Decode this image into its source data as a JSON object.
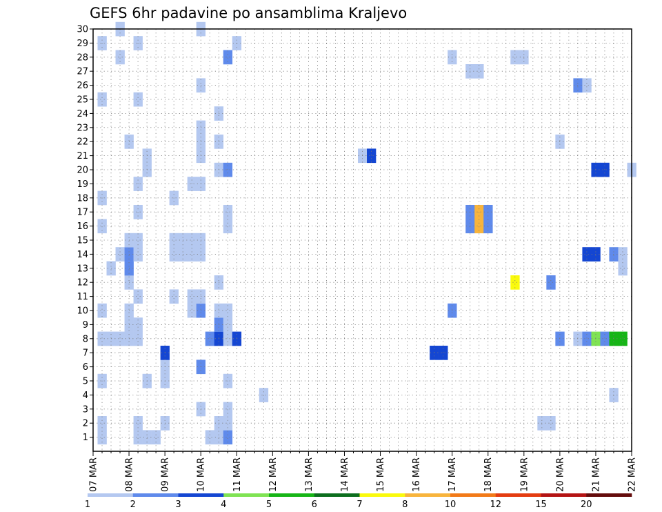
{
  "chart_data": {
    "type": "heatmap",
    "title": "GEFS 6hr padavine po ansamblima Kraljevo",
    "xlabel": "",
    "ylabel": "",
    "x_ticks": [
      "07 MAR",
      "08 MAR",
      "09 MAR",
      "10 MAR",
      "11 MAR",
      "12 MAR",
      "13 MAR",
      "14 MAR",
      "15 MAR",
      "16 MAR",
      "17 MAR",
      "18 MAR",
      "19 MAR",
      "20 MAR",
      "21 MAR",
      "22 MAR"
    ],
    "y_ticks": [
      1,
      2,
      3,
      4,
      5,
      6,
      7,
      8,
      9,
      10,
      11,
      12,
      13,
      14,
      15,
      16,
      17,
      18,
      19,
      20,
      21,
      22,
      23,
      24,
      25,
      26,
      27,
      28,
      29,
      30
    ],
    "x_range": [
      "07 MAR 00",
      "22 MAR 00"
    ],
    "time_step_hours": 6,
    "y_range": [
      0,
      30
    ],
    "grid": true,
    "legend_position": "bottom",
    "color_bins": [
      {
        "from": "1",
        "to": "2",
        "color": "#b4c8f0"
      },
      {
        "from": "2",
        "to": "3",
        "color": "#5f8aeb"
      },
      {
        "from": "3",
        "to": "4",
        "color": "#1446d2"
      },
      {
        "from": "4",
        "to": "5",
        "color": "#7fe353"
      },
      {
        "from": "5",
        "to": "6",
        "color": "#16b516"
      },
      {
        "from": "6",
        "to": "7",
        "color": "#0c6e1e"
      },
      {
        "from": "7",
        "to": "8",
        "color": "#fafa0c"
      },
      {
        "from": "8",
        "to": "10",
        "color": "#f8b43c"
      },
      {
        "from": "10",
        "to": "12",
        "color": "#f27a18"
      },
      {
        "from": "12",
        "to": "15",
        "color": "#e43c10"
      },
      {
        "from": "15",
        "to": "20",
        "color": "#b41414"
      },
      {
        "from": "20",
        "to": "",
        "color": "#640c0c"
      }
    ],
    "cells": [
      {
        "member": 1,
        "time": "07 MAR 06",
        "bin": 1
      },
      {
        "member": 1,
        "time": "08 MAR 06",
        "bin": 1
      },
      {
        "member": 1,
        "time": "08 MAR 12",
        "bin": 1
      },
      {
        "member": 1,
        "time": "08 MAR 18",
        "bin": 1
      },
      {
        "member": 1,
        "time": "10 MAR 06",
        "bin": 1
      },
      {
        "member": 1,
        "time": "10 MAR 12",
        "bin": 1
      },
      {
        "member": 1,
        "time": "10 MAR 18",
        "bin": 2
      },
      {
        "member": 2,
        "time": "07 MAR 06",
        "bin": 1
      },
      {
        "member": 2,
        "time": "08 MAR 06",
        "bin": 1
      },
      {
        "member": 2,
        "time": "09 MAR 00",
        "bin": 1
      },
      {
        "member": 2,
        "time": "10 MAR 12",
        "bin": 1
      },
      {
        "member": 2,
        "time": "10 MAR 18",
        "bin": 1
      },
      {
        "member": 2,
        "time": "19 MAR 12",
        "bin": 1
      },
      {
        "member": 2,
        "time": "19 MAR 18",
        "bin": 1
      },
      {
        "member": 3,
        "time": "10 MAR 00",
        "bin": 1
      },
      {
        "member": 3,
        "time": "10 MAR 18",
        "bin": 1
      },
      {
        "member": 4,
        "time": "11 MAR 18",
        "bin": 1
      },
      {
        "member": 4,
        "time": "21 MAR 12",
        "bin": 1
      },
      {
        "member": 5,
        "time": "07 MAR 06",
        "bin": 1
      },
      {
        "member": 5,
        "time": "08 MAR 12",
        "bin": 1
      },
      {
        "member": 5,
        "time": "09 MAR 00",
        "bin": 1
      },
      {
        "member": 5,
        "time": "10 MAR 18",
        "bin": 1
      },
      {
        "member": 6,
        "time": "09 MAR 00",
        "bin": 1
      },
      {
        "member": 6,
        "time": "10 MAR 00",
        "bin": 2
      },
      {
        "member": 7,
        "time": "09 MAR 00",
        "bin": 3
      },
      {
        "member": 7,
        "time": "16 MAR 12",
        "bin": 3
      },
      {
        "member": 7,
        "time": "16 MAR 18",
        "bin": 3
      },
      {
        "member": 8,
        "time": "07 MAR 06",
        "bin": 1
      },
      {
        "member": 8,
        "time": "07 MAR 12",
        "bin": 1
      },
      {
        "member": 8,
        "time": "07 MAR 18",
        "bin": 1
      },
      {
        "member": 8,
        "time": "08 MAR 00",
        "bin": 1
      },
      {
        "member": 8,
        "time": "08 MAR 06",
        "bin": 1
      },
      {
        "member": 8,
        "time": "10 MAR 06",
        "bin": 2
      },
      {
        "member": 8,
        "time": "10 MAR 12",
        "bin": 3
      },
      {
        "member": 8,
        "time": "10 MAR 18",
        "bin": 1
      },
      {
        "member": 8,
        "time": "11 MAR 00",
        "bin": 3
      },
      {
        "member": 8,
        "time": "20 MAR 00",
        "bin": 2
      },
      {
        "member": 8,
        "time": "20 MAR 12",
        "bin": 1
      },
      {
        "member": 8,
        "time": "20 MAR 18",
        "bin": 2
      },
      {
        "member": 8,
        "time": "21 MAR 00",
        "bin": 4
      },
      {
        "member": 8,
        "time": "21 MAR 06",
        "bin": 2
      },
      {
        "member": 8,
        "time": "21 MAR 12",
        "bin": 5
      },
      {
        "member": 8,
        "time": "21 MAR 18",
        "bin": 5
      },
      {
        "member": 9,
        "time": "08 MAR 00",
        "bin": 1
      },
      {
        "member": 9,
        "time": "08 MAR 06",
        "bin": 1
      },
      {
        "member": 9,
        "time": "10 MAR 12",
        "bin": 2
      },
      {
        "member": 9,
        "time": "10 MAR 18",
        "bin": 1
      },
      {
        "member": 10,
        "time": "07 MAR 06",
        "bin": 1
      },
      {
        "member": 10,
        "time": "08 MAR 00",
        "bin": 1
      },
      {
        "member": 10,
        "time": "09 MAR 18",
        "bin": 1
      },
      {
        "member": 10,
        "time": "10 MAR 00",
        "bin": 2
      },
      {
        "member": 10,
        "time": "10 MAR 12",
        "bin": 1
      },
      {
        "member": 10,
        "time": "10 MAR 18",
        "bin": 1
      },
      {
        "member": 10,
        "time": "17 MAR 00",
        "bin": 2
      },
      {
        "member": 11,
        "time": "08 MAR 06",
        "bin": 1
      },
      {
        "member": 11,
        "time": "09 MAR 06",
        "bin": 1
      },
      {
        "member": 11,
        "time": "09 MAR 18",
        "bin": 1
      },
      {
        "member": 11,
        "time": "10 MAR 00",
        "bin": 1
      },
      {
        "member": 12,
        "time": "08 MAR 00",
        "bin": 1
      },
      {
        "member": 12,
        "time": "10 MAR 12",
        "bin": 1
      },
      {
        "member": 12,
        "time": "18 MAR 18",
        "bin": 7
      },
      {
        "member": 12,
        "time": "19 MAR 18",
        "bin": 2
      },
      {
        "member": 13,
        "time": "07 MAR 12",
        "bin": 1
      },
      {
        "member": 13,
        "time": "08 MAR 00",
        "bin": 2
      },
      {
        "member": 13,
        "time": "21 MAR 18",
        "bin": 1
      },
      {
        "member": 14,
        "time": "07 MAR 18",
        "bin": 1
      },
      {
        "member": 14,
        "time": "08 MAR 00",
        "bin": 2
      },
      {
        "member": 14,
        "time": "08 MAR 06",
        "bin": 1
      },
      {
        "member": 14,
        "time": "09 MAR 06",
        "bin": 1
      },
      {
        "member": 14,
        "time": "09 MAR 12",
        "bin": 1
      },
      {
        "member": 14,
        "time": "09 MAR 18",
        "bin": 1
      },
      {
        "member": 14,
        "time": "10 MAR 00",
        "bin": 1
      },
      {
        "member": 14,
        "time": "20 MAR 18",
        "bin": 3
      },
      {
        "member": 14,
        "time": "21 MAR 00",
        "bin": 3
      },
      {
        "member": 14,
        "time": "21 MAR 12",
        "bin": 2
      },
      {
        "member": 14,
        "time": "21 MAR 18",
        "bin": 1
      },
      {
        "member": 15,
        "time": "08 MAR 00",
        "bin": 1
      },
      {
        "member": 15,
        "time": "08 MAR 06",
        "bin": 1
      },
      {
        "member": 15,
        "time": "09 MAR 06",
        "bin": 1
      },
      {
        "member": 15,
        "time": "09 MAR 12",
        "bin": 1
      },
      {
        "member": 15,
        "time": "09 MAR 18",
        "bin": 1
      },
      {
        "member": 15,
        "time": "10 MAR 00",
        "bin": 1
      },
      {
        "member": 16,
        "time": "07 MAR 06",
        "bin": 1
      },
      {
        "member": 16,
        "time": "10 MAR 18",
        "bin": 1
      },
      {
        "member": 16,
        "time": "17 MAR 12",
        "bin": 2
      },
      {
        "member": 16,
        "time": "17 MAR 18",
        "bin": 8
      },
      {
        "member": 16,
        "time": "18 MAR 00",
        "bin": 2
      },
      {
        "member": 17,
        "time": "08 MAR 06",
        "bin": 1
      },
      {
        "member": 17,
        "time": "10 MAR 18",
        "bin": 1
      },
      {
        "member": 17,
        "time": "17 MAR 12",
        "bin": 2
      },
      {
        "member": 17,
        "time": "17 MAR 18",
        "bin": 8
      },
      {
        "member": 17,
        "time": "18 MAR 00",
        "bin": 2
      },
      {
        "member": 18,
        "time": "07 MAR 06",
        "bin": 1
      },
      {
        "member": 18,
        "time": "09 MAR 06",
        "bin": 1
      },
      {
        "member": 19,
        "time": "08 MAR 06",
        "bin": 1
      },
      {
        "member": 19,
        "time": "09 MAR 18",
        "bin": 1
      },
      {
        "member": 19,
        "time": "10 MAR 00",
        "bin": 1
      },
      {
        "member": 20,
        "time": "08 MAR 12",
        "bin": 1
      },
      {
        "member": 20,
        "time": "10 MAR 12",
        "bin": 1
      },
      {
        "member": 20,
        "time": "10 MAR 18",
        "bin": 2
      },
      {
        "member": 20,
        "time": "21 MAR 00",
        "bin": 3
      },
      {
        "member": 20,
        "time": "21 MAR 06",
        "bin": 3
      },
      {
        "member": 20,
        "time": "22 MAR 00",
        "bin": 1
      },
      {
        "member": 21,
        "time": "08 MAR 12",
        "bin": 1
      },
      {
        "member": 21,
        "time": "10 MAR 00",
        "bin": 1
      },
      {
        "member": 21,
        "time": "14 MAR 12",
        "bin": 1
      },
      {
        "member": 21,
        "time": "14 MAR 18",
        "bin": 3
      },
      {
        "member": 22,
        "time": "08 MAR 00",
        "bin": 1
      },
      {
        "member": 22,
        "time": "10 MAR 00",
        "bin": 1
      },
      {
        "member": 22,
        "time": "10 MAR 12",
        "bin": 1
      },
      {
        "member": 22,
        "time": "20 MAR 00",
        "bin": 1
      },
      {
        "member": 23,
        "time": "10 MAR 00",
        "bin": 1
      },
      {
        "member": 24,
        "time": "10 MAR 12",
        "bin": 1
      },
      {
        "member": 25,
        "time": "07 MAR 06",
        "bin": 1
      },
      {
        "member": 25,
        "time": "08 MAR 06",
        "bin": 1
      },
      {
        "member": 26,
        "time": "10 MAR 00",
        "bin": 1
      },
      {
        "member": 26,
        "time": "20 MAR 12",
        "bin": 2
      },
      {
        "member": 26,
        "time": "20 MAR 18",
        "bin": 1
      },
      {
        "member": 27,
        "time": "17 MAR 12",
        "bin": 1
      },
      {
        "member": 27,
        "time": "17 MAR 18",
        "bin": 1
      },
      {
        "member": 28,
        "time": "07 MAR 18",
        "bin": 1
      },
      {
        "member": 28,
        "time": "10 MAR 18",
        "bin": 2
      },
      {
        "member": 28,
        "time": "17 MAR 00",
        "bin": 1
      },
      {
        "member": 28,
        "time": "18 MAR 18",
        "bin": 1
      },
      {
        "member": 28,
        "time": "19 MAR 00",
        "bin": 1
      },
      {
        "member": 29,
        "time": "07 MAR 06",
        "bin": 1
      },
      {
        "member": 29,
        "time": "08 MAR 06",
        "bin": 1
      },
      {
        "member": 29,
        "time": "11 MAR 00",
        "bin": 1
      },
      {
        "member": 30,
        "time": "07 MAR 18",
        "bin": 1
      },
      {
        "member": 30,
        "time": "10 MAR 00",
        "bin": 1
      }
    ]
  }
}
